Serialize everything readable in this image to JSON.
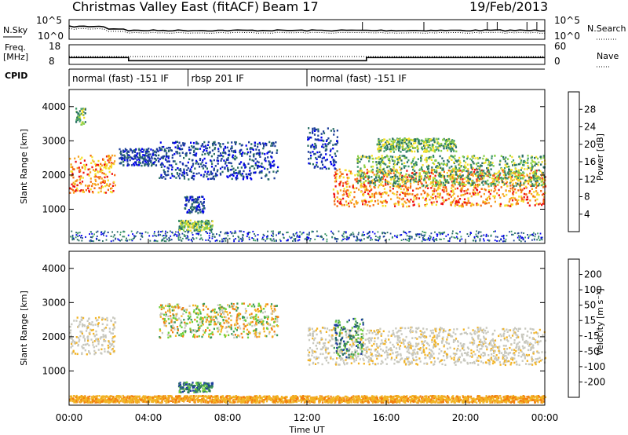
{
  "header": {
    "station_title": "Christmas Valley East (fitACF)",
    "beam_label": "Beam 17",
    "date_label": "19/Feb/2013"
  },
  "strip_labels": {
    "nsky": "N.Sky",
    "nsearch": "N.Search",
    "freq_line1": "Freq.",
    "freq_line2": "[MHz]",
    "nave": "Nave",
    "cpid": "CPID"
  },
  "strip_ticks": {
    "nsky_top": "10^5",
    "nsky_bottom": "10^0",
    "nsearch_top": "10^5",
    "nsearch_bottom": "10^0",
    "freq_top": "18",
    "freq_bottom": "8",
    "nave_top": "60",
    "nave_bottom": "0"
  },
  "cpid_modes": [
    {
      "label": "normal (fast) -151 IF",
      "start_hour": 0,
      "end_hour": 6
    },
    {
      "label": "rbsp 201 IF",
      "start_hour": 6,
      "end_hour": 12
    },
    {
      "label": "normal (fast) -151 IF",
      "start_hour": 12,
      "end_hour": 24
    }
  ],
  "x_axis": {
    "label": "Time UT",
    "ticks": [
      "00:00",
      "04:00",
      "08:00",
      "12:00",
      "16:00",
      "20:00",
      "00:00"
    ]
  },
  "y_axis": {
    "label": "Slant Range [km]",
    "ticks": [
      "1000",
      "2000",
      "3000",
      "4000"
    ]
  },
  "colorbars": {
    "power": {
      "label": "Power [dB]",
      "ticks": [
        "4",
        "8",
        "12",
        "16",
        "20",
        "24",
        "28"
      ],
      "colors": [
        "#0000ee",
        "#1e3f9a",
        "#2a6e64",
        "#3f9a6a",
        "#8ad04b",
        "#f5e02a",
        "#f7a21d",
        "#f36a12",
        "#ee1111"
      ]
    },
    "velocity": {
      "label": "Velocity [m s⁻¹]",
      "ticks": [
        "200",
        "100",
        "50",
        "15",
        "-15",
        "-50",
        "-100",
        "-200"
      ],
      "colors": [
        "#1f3fa0",
        "#2b6e64",
        "#3f9a55",
        "#6fd03a",
        "#c8c8be",
        "#f2b324",
        "#f2800f",
        "#ee3f0c",
        "#ee0000"
      ]
    }
  },
  "chart_data": {
    "type": "heatmap",
    "x_unit": "hours UT",
    "xlim": [
      0,
      24
    ],
    "ylim": [
      0,
      4500
    ],
    "y_unit": "km",
    "frequency_MHz": [
      {
        "start_hour": 0,
        "end_hour": 3.0,
        "value": 11.5
      },
      {
        "start_hour": 3.0,
        "end_hour": 15.0,
        "value": 9.9
      },
      {
        "start_hour": 15.0,
        "end_hour": 24,
        "value": 11.5
      }
    ],
    "power_regions": [
      {
        "t0": 0.0,
        "t1": 2.3,
        "r0": 1500,
        "r1": 2600,
        "level": "high"
      },
      {
        "t0": 0.3,
        "t1": 0.8,
        "r0": 3500,
        "r1": 4000,
        "level": "mid"
      },
      {
        "t0": 2.5,
        "t1": 4.5,
        "r0": 2300,
        "r1": 2800,
        "level": "low"
      },
      {
        "t0": 4.5,
        "t1": 10.5,
        "r0": 1900,
        "r1": 3000,
        "level": "low"
      },
      {
        "t0": 5.5,
        "t1": 7.2,
        "r0": 400,
        "r1": 700,
        "level": "mid"
      },
      {
        "t0": 5.8,
        "t1": 6.8,
        "r0": 900,
        "r1": 1400,
        "level": "low"
      },
      {
        "t0": 12.0,
        "t1": 13.5,
        "r0": 2200,
        "r1": 3400,
        "level": "low"
      },
      {
        "t0": 13.3,
        "t1": 24.0,
        "r0": 1100,
        "r1": 2200,
        "level": "high"
      },
      {
        "t0": 14.5,
        "t1": 24.0,
        "r0": 1700,
        "r1": 2600,
        "level": "mid"
      },
      {
        "t0": 15.5,
        "t1": 19.5,
        "r0": 2700,
        "r1": 3100,
        "level": "mid"
      }
    ],
    "velocity_regions": [
      {
        "t0": 0.0,
        "t1": 2.3,
        "r0": 1500,
        "r1": 2600,
        "level": "ground"
      },
      {
        "t0": 4.5,
        "t1": 10.5,
        "r0": 2000,
        "r1": 3000,
        "level": "mixed"
      },
      {
        "t0": 5.5,
        "t1": 7.2,
        "r0": 400,
        "r1": 700,
        "level": "positive"
      },
      {
        "t0": 12.0,
        "t1": 24.0,
        "r0": 1200,
        "r1": 2300,
        "level": "ground"
      },
      {
        "t0": 13.3,
        "t1": 14.8,
        "r0": 1400,
        "r1": 2600,
        "level": "positive"
      },
      {
        "t0": 0.0,
        "t1": 24.0,
        "r0": 100,
        "r1": 300,
        "level": "negative"
      }
    ]
  }
}
